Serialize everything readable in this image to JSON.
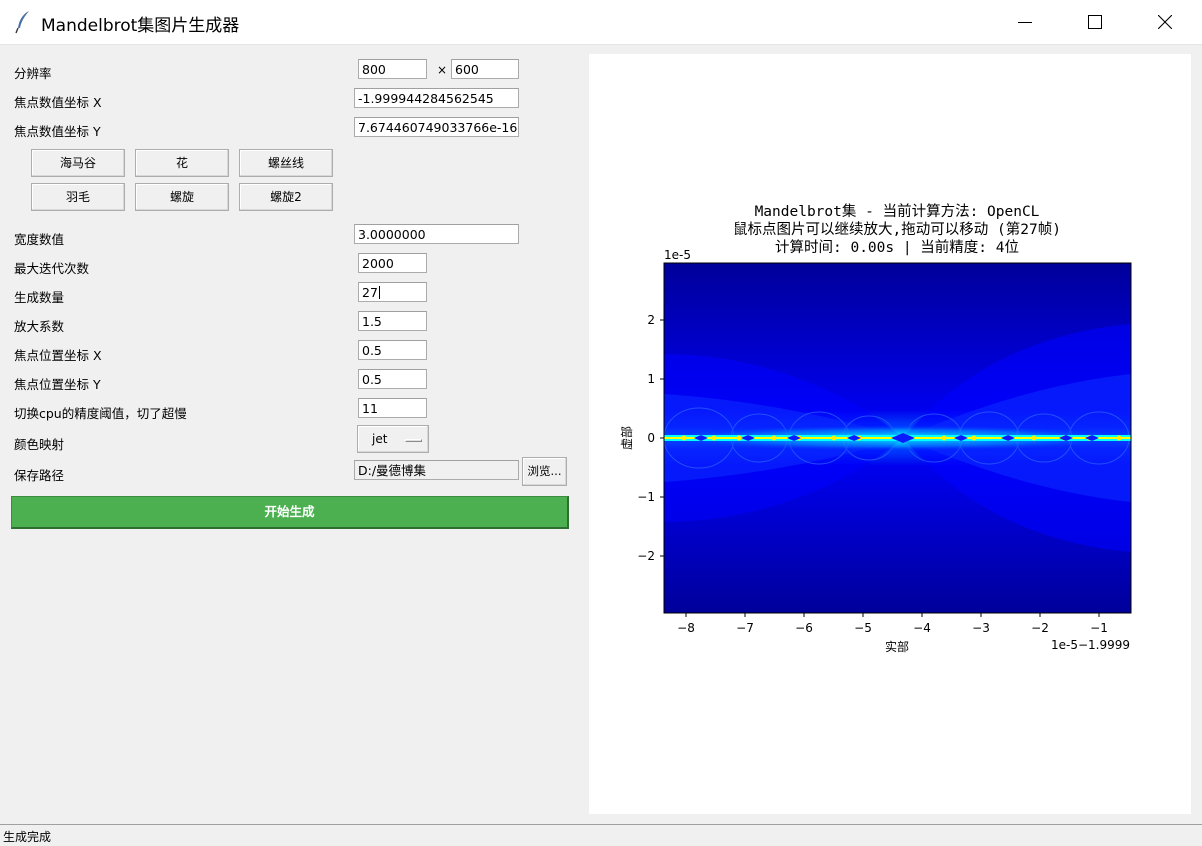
{
  "window": {
    "title": "Mandelbrot集图片生成器",
    "icons": {
      "app": "feather-icon",
      "minimize": "minimize-icon",
      "maximize": "maximize-icon",
      "close": "close-icon"
    }
  },
  "form": {
    "resolution": {
      "label": "分辨率",
      "width": "800",
      "times": "×",
      "height": "600"
    },
    "focus_value_x": {
      "label": "焦点数值坐标 X",
      "value": "-1.999944284562545"
    },
    "focus_value_y": {
      "label": "焦点数值坐标 Y",
      "value": "7.674460749033766e-16"
    },
    "presets": [
      "海马谷",
      "花",
      "螺丝线",
      "羽毛",
      "螺旋",
      "螺旋2"
    ],
    "width_value": {
      "label": "宽度数值",
      "value": "3.0000000"
    },
    "max_iter": {
      "label": "最大迭代次数",
      "value": "2000"
    },
    "gen_count": {
      "label": "生成数量",
      "value": "27"
    },
    "zoom_factor": {
      "label": "放大系数",
      "value": "1.5"
    },
    "focus_pos_x": {
      "label": "焦点位置坐标 X",
      "value": "0.5"
    },
    "focus_pos_y": {
      "label": "焦点位置坐标 Y",
      "value": "0.5"
    },
    "cpu_threshold": {
      "label": "切换cpu的精度阈值，切了超慢",
      "value": "11"
    },
    "colormap": {
      "label": "颜色映射",
      "value": "jet"
    },
    "save_path": {
      "label": "保存路径",
      "value": "D:/曼德博集",
      "browse": "浏览..."
    },
    "start_button": "开始生成"
  },
  "plot": {
    "title_lines": [
      "Mandelbrot集 - 当前计算方法: OpenCL",
      "鼠标点图片可以继续放大,拖动可以移动 (第27帧)",
      "计算时间: 0.00s | 当前精度: 4位"
    ],
    "y_scale": "1e-5",
    "x_offset": "1e-5−1.9999",
    "xlabel": "实部",
    "ylabel": "虚部",
    "x_ticks": [
      "−8",
      "−7",
      "−6",
      "−5",
      "−4",
      "−3",
      "−2",
      "−1"
    ],
    "y_ticks": [
      "2",
      "1",
      "0",
      "−1",
      "−2"
    ],
    "colors": {
      "deep": "#00009a",
      "blue": "#0000ff",
      "cyan": "#00ffff",
      "yellow": "#ffff00"
    }
  },
  "status": "生成完成"
}
